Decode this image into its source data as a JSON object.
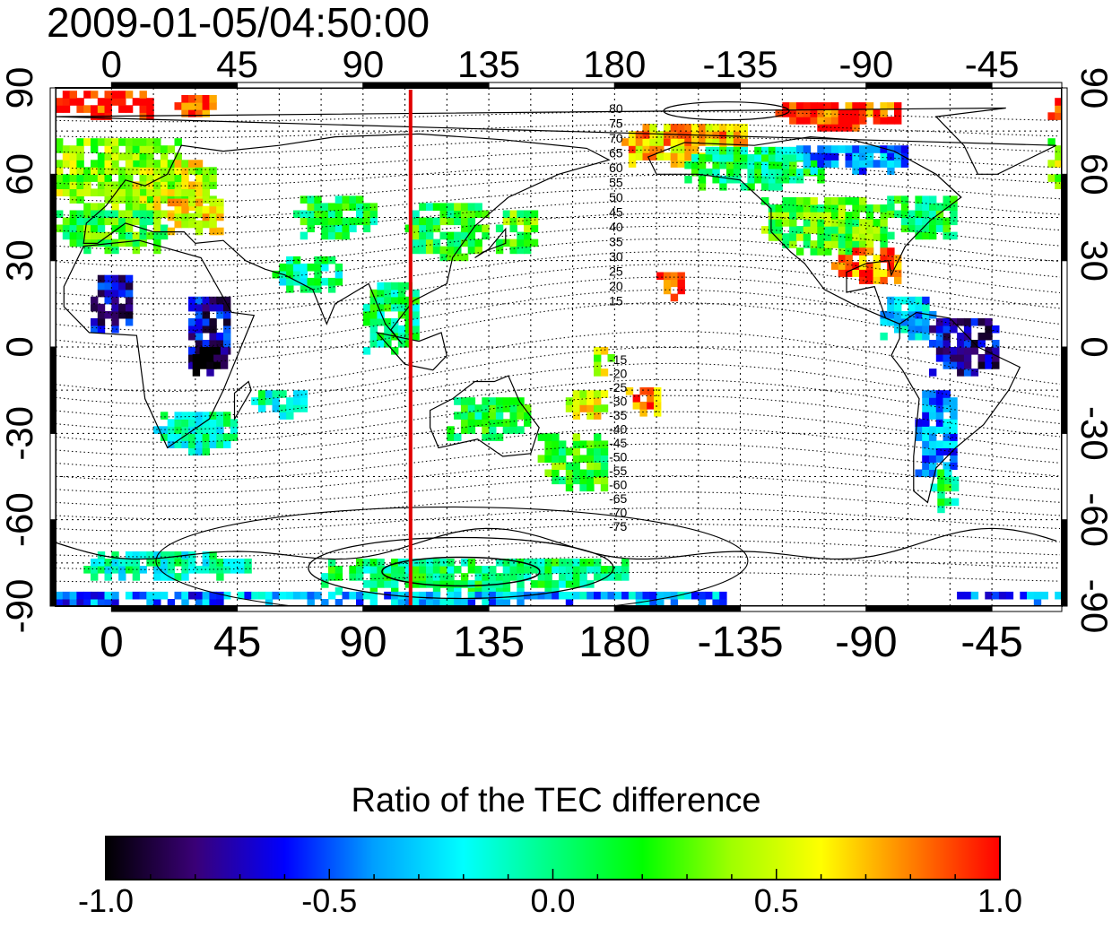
{
  "header": {
    "timestamp": "2009-01-05/04:50:00"
  },
  "map": {
    "top_x_ticks": [
      "0",
      "45",
      "90",
      "135",
      "180",
      "-135",
      "-90",
      "-45"
    ],
    "bottom_x_ticks": [
      "0",
      "45",
      "90",
      "135",
      "180",
      "-135",
      "-90",
      "-45"
    ],
    "left_y_ticks": [
      "90",
      "60",
      "30",
      "0",
      "-30",
      "-60",
      "-90"
    ],
    "right_y_ticks": [
      "90",
      "60",
      "30",
      "0",
      "-30",
      "-60",
      "-90"
    ],
    "contour_labels_north": [
      "80",
      "75",
      "70",
      "65",
      "60",
      "55",
      "50",
      "45",
      "40",
      "35",
      "30",
      "25",
      "20",
      "15"
    ],
    "contour_labels_south": [
      "-15",
      "-20",
      "-25",
      "-30",
      "-35",
      "-40",
      "-45",
      "-50",
      "-55",
      "-60",
      "-65",
      "-70",
      "-75"
    ],
    "terminator_longitude": 107
  },
  "colorbar": {
    "title": "Ratio of the TEC difference",
    "ticks": [
      "-1.0",
      "-0.5",
      "0.0",
      "0.5",
      "1.0"
    ],
    "colors": [
      "#000000",
      "#3a0077",
      "#0000ff",
      "#00a0ff",
      "#00ffff",
      "#00ff80",
      "#00ff00",
      "#a0ff00",
      "#ffff00",
      "#ff8000",
      "#ff0000"
    ]
  },
  "chart_data": {
    "type": "heatmap",
    "title": "2009-01-05/04:50:00",
    "xlabel": "",
    "ylabel": "",
    "xlim": [
      -20,
      340
    ],
    "ylim": [
      -90,
      90
    ],
    "colorbar_label": "Ratio of the TEC difference",
    "colorbar_range": [
      -1.0,
      1.0
    ],
    "terminator_longitude": 107,
    "patches": [
      {
        "lon": 0,
        "lat": 60,
        "w": 50,
        "h": 25,
        "v": 0.4
      },
      {
        "lon": 20,
        "lat": 55,
        "w": 35,
        "h": 20,
        "v": 0.5
      },
      {
        "lon": -5,
        "lat": 83,
        "w": 40,
        "h": 8,
        "v": 1.0
      },
      {
        "lon": 30,
        "lat": 83,
        "w": 15,
        "h": 6,
        "v": 0.9
      },
      {
        "lon": 0,
        "lat": 40,
        "w": 40,
        "h": 15,
        "v": 0.2
      },
      {
        "lon": 30,
        "lat": 45,
        "w": 20,
        "h": 12,
        "v": 0.6
      },
      {
        "lon": 0,
        "lat": 15,
        "w": 15,
        "h": 20,
        "v": -0.7
      },
      {
        "lon": 35,
        "lat": 5,
        "w": 15,
        "h": 25,
        "v": -0.7
      },
      {
        "lon": 35,
        "lat": -5,
        "w": 12,
        "h": 10,
        "v": -0.95
      },
      {
        "lon": 30,
        "lat": -30,
        "w": 30,
        "h": 15,
        "v": -0.1
      },
      {
        "lon": 60,
        "lat": -20,
        "w": 20,
        "h": 10,
        "v": -0.1
      },
      {
        "lon": 80,
        "lat": 45,
        "w": 30,
        "h": 15,
        "v": 0.1
      },
      {
        "lon": 70,
        "lat": 25,
        "w": 25,
        "h": 12,
        "v": -0.05
      },
      {
        "lon": 100,
        "lat": 10,
        "w": 20,
        "h": 25,
        "v": 0.05
      },
      {
        "lon": 120,
        "lat": 40,
        "w": 30,
        "h": 20,
        "v": 0.15
      },
      {
        "lon": 145,
        "lat": 40,
        "w": 15,
        "h": 15,
        "v": 0.25
      },
      {
        "lon": 135,
        "lat": -25,
        "w": 30,
        "h": 15,
        "v": 0.1
      },
      {
        "lon": 165,
        "lat": -40,
        "w": 25,
        "h": 20,
        "v": 0.2
      },
      {
        "lon": 170,
        "lat": -20,
        "w": 15,
        "h": 10,
        "v": 0.55
      },
      {
        "lon": 190,
        "lat": -20,
        "w": 12,
        "h": 8,
        "v": 0.8
      },
      {
        "lon": 200,
        "lat": 20,
        "w": 10,
        "h": 8,
        "v": 0.9
      },
      {
        "lon": 175,
        "lat": -5,
        "w": 10,
        "h": 10,
        "v": 0.5
      },
      {
        "lon": 205,
        "lat": 70,
        "w": 45,
        "h": 15,
        "v": 0.7
      },
      {
        "lon": 260,
        "lat": 80,
        "w": 45,
        "h": 10,
        "v": 0.9
      },
      {
        "lon": 230,
        "lat": 62,
        "w": 50,
        "h": 15,
        "v": 0.05
      },
      {
        "lon": 265,
        "lat": 65,
        "w": 40,
        "h": 10,
        "v": -0.4
      },
      {
        "lon": 255,
        "lat": 42,
        "w": 45,
        "h": 20,
        "v": 0.25
      },
      {
        "lon": 270,
        "lat": 28,
        "w": 25,
        "h": 12,
        "v": 0.85
      },
      {
        "lon": 290,
        "lat": 45,
        "w": 25,
        "h": 15,
        "v": 0.1
      },
      {
        "lon": 285,
        "lat": 10,
        "w": 20,
        "h": 15,
        "v": -0.3
      },
      {
        "lon": 305,
        "lat": 0,
        "w": 25,
        "h": 20,
        "v": -0.7
      },
      {
        "lon": 295,
        "lat": -30,
        "w": 15,
        "h": 30,
        "v": -0.4
      },
      {
        "lon": 298,
        "lat": -50,
        "w": 10,
        "h": 15,
        "v": 0.05
      },
      {
        "lon": 130,
        "lat": -80,
        "w": 110,
        "h": 12,
        "v": 0.05
      },
      {
        "lon": 20,
        "lat": -77,
        "w": 60,
        "h": 8,
        "v": -0.1
      },
      {
        "lon": 120,
        "lat": -88,
        "w": 200,
        "h": 4,
        "v": -0.35
      },
      {
        "lon": -10,
        "lat": -88,
        "w": 100,
        "h": 4,
        "v": -0.45
      }
    ]
  }
}
